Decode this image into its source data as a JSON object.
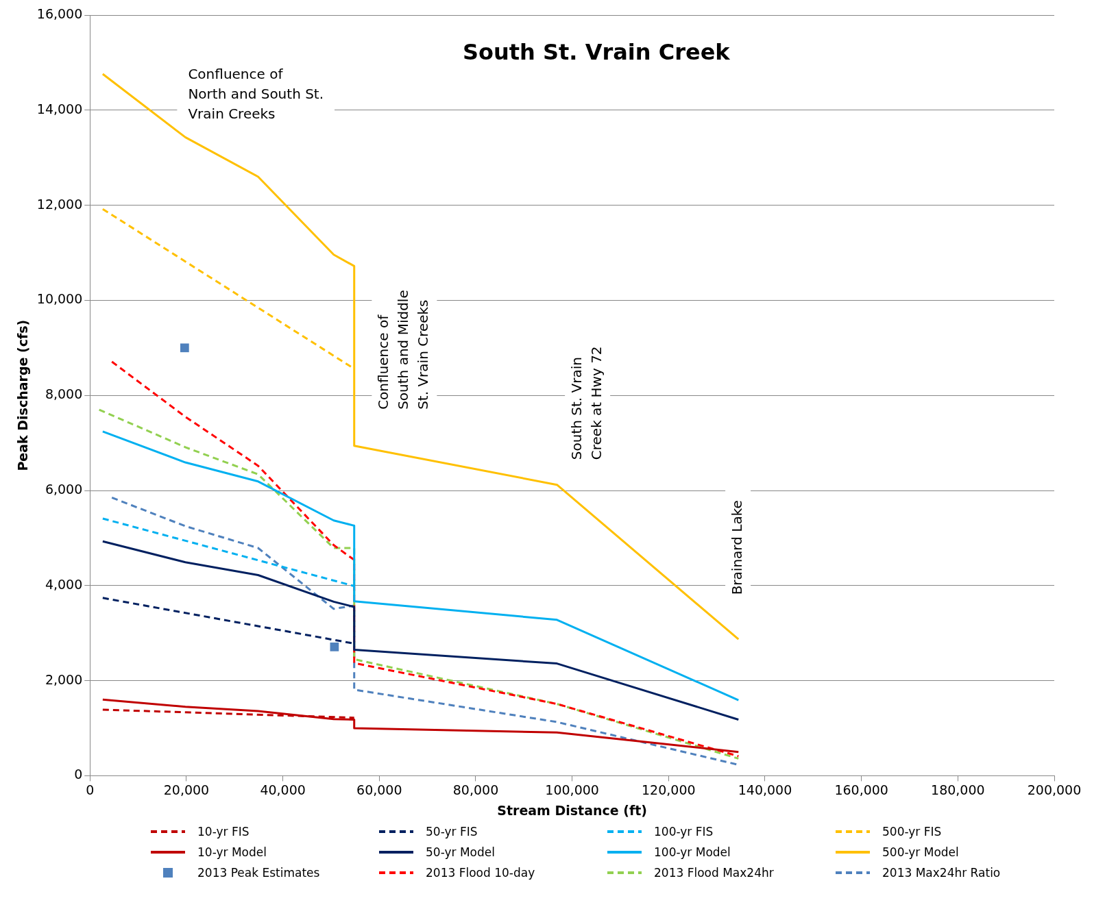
{
  "chart_data": {
    "type": "line",
    "title": "South St. Vrain Creek",
    "xlabel": "Stream Distance (ft)",
    "ylabel": "Peak Discharge (cfs)",
    "xlim": [
      0,
      200000
    ],
    "xticks": [
      0,
      {
        "value": 20000,
        "label": "20,000"
      },
      {
        "value": 40000,
        "label": "40,000"
      },
      {
        "value": 60000,
        "label": "60,000"
      },
      {
        "value": 80000,
        "label": "80,000"
      },
      {
        "value": 100000,
        "label": "100,000"
      },
      {
        "value": 120000,
        "label": "120,000"
      },
      {
        "value": 140000,
        "label": "140,000"
      },
      {
        "value": 160000,
        "label": "160,000"
      },
      {
        "value": 180000,
        "label": "180,000"
      },
      {
        "value": 200000,
        "label": "200,000"
      }
    ],
    "ylim": [
      0,
      16000
    ],
    "yticks": [
      0,
      {
        "value": 2000,
        "label": "2,000"
      },
      {
        "value": 4000,
        "label": "4,000"
      },
      {
        "value": 6000,
        "label": "6,000"
      },
      {
        "value": 8000,
        "label": "8,000"
      },
      {
        "value": 10000,
        "label": "10,000"
      },
      {
        "value": 12000,
        "label": "12,000"
      },
      {
        "value": 14000,
        "label": "14,000"
      },
      {
        "value": 16000,
        "label": "16,000"
      }
    ],
    "grid": "y",
    "legend": "bottom",
    "annotations": [
      "Confluence of\nNorth and South St.\nVrain Creeks",
      "Confluence of\nSouth and Middle\nSt. Vrain Creeks",
      "South St. Vrain\nCreek at Hwy 72",
      "Brainard Lake"
    ],
    "series": [
      {
        "name": "10-yr FIS",
        "color": "#c00000",
        "line_style": "dashed",
        "x": [
          2640,
          54800
        ],
        "values": [
          1390,
          1220
        ]
      },
      {
        "name": "50-yr FIS",
        "color": "#002060",
        "line_style": "dashed",
        "x": [
          2640,
          54800
        ],
        "values": [
          3740,
          2780
        ]
      },
      {
        "name": "100-yr FIS",
        "color": "#00b0f0",
        "line_style": "dashed",
        "x": [
          2640,
          54800
        ],
        "values": [
          5410,
          3990
        ]
      },
      {
        "name": "500-yr FIS",
        "color": "#ffc000",
        "line_style": "dashed",
        "x": [
          2640,
          54800
        ],
        "values": [
          11920,
          8560
        ]
      },
      {
        "name": "10-yr Model",
        "color": "#c00000",
        "line_style": "solid",
        "x": [
          2640,
          19780,
          34870,
          50550,
          54800,
          54800,
          96850,
          134500
        ],
        "values": [
          1600,
          1450,
          1360,
          1190,
          1180,
          1000,
          910,
          500
        ]
      },
      {
        "name": "50-yr Model",
        "color": "#002060",
        "line_style": "solid",
        "x": [
          2640,
          19780,
          34870,
          50550,
          54800,
          54800,
          96850,
          134500
        ],
        "values": [
          4930,
          4490,
          4220,
          3660,
          3550,
          2650,
          2360,
          1180
        ]
      },
      {
        "name": "100-yr Model",
        "color": "#00b0f0",
        "line_style": "solid",
        "x": [
          2640,
          19780,
          34870,
          50550,
          54800,
          54800,
          96850,
          134500
        ],
        "values": [
          7240,
          6590,
          6190,
          5370,
          5260,
          3670,
          3280,
          1590
        ]
      },
      {
        "name": "500-yr Model",
        "color": "#ffc000",
        "line_style": "solid",
        "x": [
          2640,
          19780,
          34870,
          50550,
          54800,
          54800,
          96850,
          134500
        ],
        "values": [
          14760,
          13430,
          12600,
          10960,
          10720,
          6940,
          6120,
          2870
        ]
      },
      {
        "name": "2013 Peak Estimates",
        "type": "scatter",
        "marker": "square",
        "color": "#4f81bd",
        "x": [
          19630,
          50700
        ],
        "values": [
          9000,
          2710
        ]
      },
      {
        "name": "2013 Flood 10-day",
        "color": "#ff0000",
        "line_style": "dashed",
        "x": [
          4540,
          19780,
          34870,
          50550,
          54800,
          54800,
          96850,
          134500
        ],
        "values": [
          8710,
          7550,
          6520,
          4850,
          4540,
          2370,
          1510,
          410
        ]
      },
      {
        "name": "2013 Flood Max24hr",
        "color": "#92d050",
        "line_style": "dashed",
        "x": [
          1900,
          19780,
          34870,
          50550,
          54800,
          54800,
          96850,
          134500
        ],
        "values": [
          7700,
          6910,
          6340,
          4790,
          4790,
          2450,
          1510,
          360
        ]
      },
      {
        "name": "2013 Max24hr Ratio",
        "color": "#4f81bd",
        "line_style": "dashed",
        "x": [
          4540,
          19780,
          34870,
          50550,
          54800,
          54800,
          96850,
          134500
        ],
        "values": [
          5850,
          5250,
          4790,
          3510,
          3580,
          1810,
          1130,
          230
        ]
      }
    ]
  }
}
